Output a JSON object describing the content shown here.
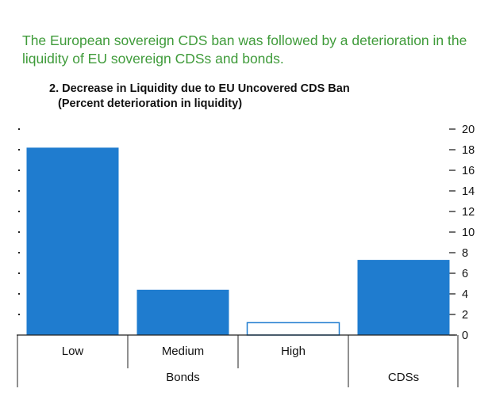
{
  "headline": "The European sovereign CDS ban was followed by a deterioration in the liquidity of EU sovereign CDSs and bonds.",
  "colors": {
    "headline": "#3f9b3a",
    "bar": "#1f7ccf",
    "text": "#111111"
  },
  "chart_data": {
    "type": "bar",
    "title": "2. Decrease in Liquidity due to EU Uncovered CDS Ban",
    "subtitle": "(Percent deterioration in liquidity)",
    "categories": [
      "Low",
      "Medium",
      "High",
      "CDSs"
    ],
    "groups": [
      {
        "label": "Bonds",
        "categories": [
          "Low",
          "Medium",
          "High"
        ]
      },
      {
        "label": "CDSs",
        "categories": [
          "CDSs"
        ]
      }
    ],
    "values": [
      18.2,
      4.4,
      1.2,
      7.3
    ],
    "ylim": [
      0,
      20
    ],
    "yticks": [
      0,
      2,
      4,
      6,
      8,
      10,
      12,
      14,
      16,
      18,
      20
    ],
    "y_axis_side": "right",
    "grid": false,
    "legend": "none",
    "xlabel": "",
    "ylabel": ""
  }
}
